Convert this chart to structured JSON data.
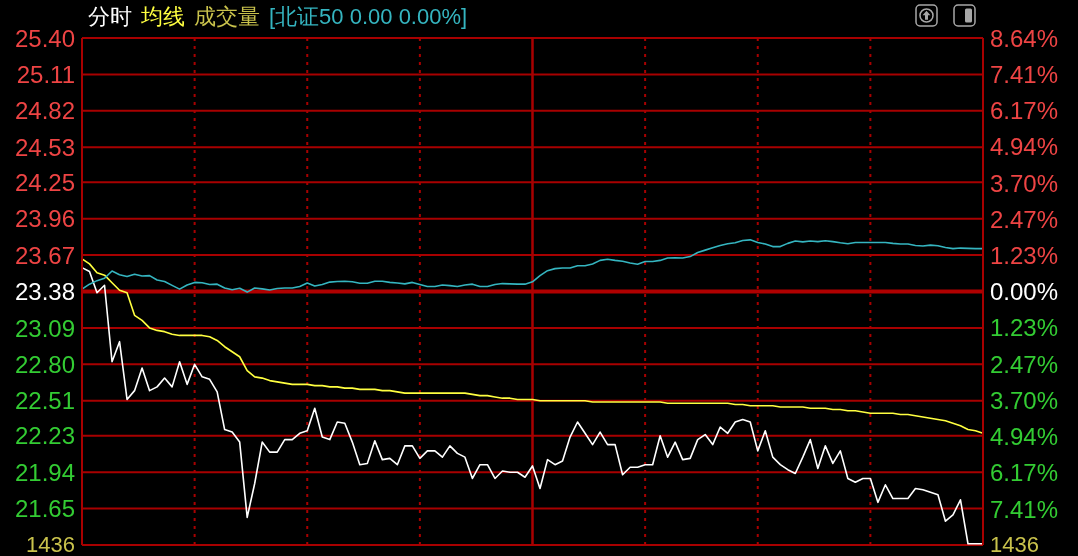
{
  "chart_data": {
    "type": "line",
    "grid": true,
    "tick_labels": "y",
    "annotations": [
      "成交量",
      "1436",
      "1436"
    ],
    "categories": [
      null,
      null,
      null,
      null,
      null,
      null,
      null,
      null,
      null,
      null,
      null,
      null,
      null,
      null,
      null,
      null,
      null,
      null,
      null,
      null,
      null,
      null,
      null,
      null,
      null,
      null,
      null,
      null,
      null,
      null,
      null,
      null,
      null,
      null,
      null,
      null,
      null,
      null,
      null,
      null,
      null,
      null,
      null,
      null,
      null,
      null,
      null,
      null,
      null,
      null,
      null,
      null,
      null,
      null,
      null,
      null,
      null,
      null,
      null,
      null,
      null,
      null,
      null,
      null,
      null,
      null,
      null,
      null,
      null,
      null,
      null,
      null,
      null,
      null,
      null,
      null,
      null,
      null,
      null,
      null,
      null,
      null,
      null,
      null,
      null,
      null,
      null,
      null,
      null,
      null,
      null,
      null,
      null,
      null,
      null,
      null,
      null,
      null,
      null,
      null,
      null,
      null,
      null,
      null,
      null,
      null,
      null,
      null,
      null,
      null,
      null,
      null,
      null,
      null,
      null,
      null,
      null,
      null,
      null,
      null,
      null
    ],
    "ylim": [
      21.36,
      25.4
    ],
    "yticks": [
      {
        "value": 25.4,
        "label": "25.40"
      },
      25.11,
      24.82,
      24.53,
      24.25,
      23.96,
      23.67,
      23.38,
      23.09,
      {
        "value": 22.8,
        "label": "22.80"
      },
      22.51,
      22.23,
      21.94,
      21.65
    ],
    "y2lim": [
      -8.64,
      8.64
    ],
    "y2ticks": [
      {
        "value": 8.64,
        "label": "8.64%"
      },
      {
        "value": 7.41,
        "label": "7.41%"
      },
      {
        "value": 6.17,
        "label": "6.17%"
      },
      {
        "value": 4.94,
        "label": "4.94%"
      },
      {
        "value": 3.7,
        "label": "3.70%"
      },
      {
        "value": 2.47,
        "label": "2.47%"
      },
      {
        "value": 1.23,
        "label": "1.23%"
      },
      {
        "value": 0,
        "label": "0.00%"
      },
      {
        "value": -1.23,
        "label": "1.23%"
      },
      {
        "value": -2.47,
        "label": "2.47%"
      },
      {
        "value": -3.7,
        "label": "3.70%"
      },
      {
        "value": -4.94,
        "label": "4.94%"
      },
      {
        "value": -6.17,
        "label": "6.17%"
      },
      {
        "value": -7.41,
        "label": "7.41%"
      }
    ],
    "ref_lines": [
      {
        "axis": "y",
        "value": 23.38,
        "color": "#b00000"
      }
    ],
    "series": [
      {
        "name": "分时",
        "color": "#ffffff",
        "values": [
          23.57,
          23.54,
          23.37,
          23.43,
          22.82,
          22.98,
          22.52,
          22.59,
          22.77,
          22.59,
          22.62,
          22.69,
          22.62,
          22.82,
          22.64,
          22.8,
          22.7,
          22.68,
          22.58,
          22.28,
          22.26,
          22.18,
          21.58,
          21.85,
          22.18,
          22.1,
          22.1,
          22.2,
          22.2,
          22.25,
          22.27,
          22.45,
          22.22,
          22.2,
          22.34,
          22.33,
          22.18,
          22.0,
          22.01,
          22.19,
          22.04,
          22.05,
          22.0,
          22.15,
          22.15,
          22.05,
          22.11,
          22.11,
          22.06,
          22.15,
          22.09,
          22.06,
          21.89,
          22.0,
          22.0,
          21.89,
          21.95,
          21.94,
          21.94,
          21.9,
          21.99,
          21.81,
          22.04,
          22.0,
          22.03,
          22.22,
          22.34,
          22.25,
          22.16,
          22.26,
          22.16,
          22.16,
          21.92,
          21.98,
          21.98,
          22.0,
          22.0,
          22.23,
          22.06,
          22.18,
          22.04,
          22.05,
          22.2,
          22.24,
          22.16,
          22.3,
          22.25,
          22.34,
          22.36,
          22.34,
          22.11,
          22.27,
          22.06,
          22.0,
          21.96,
          21.93,
          22.06,
          22.2,
          21.97,
          22.15,
          22.01,
          22.11,
          21.89,
          21.86,
          21.89,
          21.89,
          21.7,
          21.84,
          21.73,
          21.73,
          21.73,
          21.81,
          21.8,
          21.78,
          21.76,
          21.55,
          21.6,
          21.72,
          21.37,
          21.37,
          21.37
        ]
      },
      {
        "name": "均线",
        "color": "#ffff40",
        "values": [
          23.64,
          23.6,
          23.53,
          23.51,
          23.45,
          23.39,
          23.37,
          23.19,
          23.15,
          23.09,
          23.07,
          23.06,
          23.04,
          23.03,
          23.03,
          23.03,
          23.03,
          23.02,
          22.99,
          22.94,
          22.9,
          22.86,
          22.75,
          22.7,
          22.69,
          22.67,
          22.66,
          22.65,
          22.64,
          22.64,
          22.64,
          22.63,
          22.63,
          22.62,
          22.62,
          22.61,
          22.61,
          22.6,
          22.6,
          22.6,
          22.59,
          22.59,
          22.58,
          22.57,
          22.57,
          22.57,
          22.57,
          22.57,
          22.57,
          22.57,
          22.57,
          22.57,
          22.56,
          22.55,
          22.55,
          22.54,
          22.53,
          22.53,
          22.52,
          22.52,
          22.52,
          22.51,
          22.51,
          22.51,
          22.51,
          22.51,
          22.51,
          22.51,
          22.5,
          22.5,
          22.5,
          22.5,
          22.5,
          22.5,
          22.5,
          22.5,
          22.5,
          22.5,
          22.49,
          22.49,
          22.49,
          22.49,
          22.49,
          22.49,
          22.49,
          22.49,
          22.49,
          22.48,
          22.48,
          22.47,
          22.47,
          22.47,
          22.47,
          22.46,
          22.46,
          22.46,
          22.46,
          22.45,
          22.45,
          22.45,
          22.44,
          22.44,
          22.43,
          22.43,
          22.42,
          22.41,
          22.41,
          22.41,
          22.41,
          22.4,
          22.4,
          22.39,
          22.38,
          22.37,
          22.36,
          22.35,
          22.33,
          22.31,
          22.28,
          22.27,
          22.25
        ]
      },
      {
        "name": "[北证50 0.00 0.00%]",
        "color": "#35b5c0",
        "axis": "y2",
        "values": [
          0.08,
          0.25,
          0.37,
          0.45,
          0.7,
          0.57,
          0.51,
          0.59,
          0.53,
          0.54,
          0.39,
          0.34,
          0.21,
          0.08,
          0.22,
          0.31,
          0.3,
          0.24,
          0.25,
          0.12,
          0.06,
          0.11,
          -0.02,
          0.12,
          0.09,
          0.05,
          0.1,
          0.12,
          0.12,
          0.17,
          0.29,
          0.19,
          0.24,
          0.32,
          0.34,
          0.35,
          0.33,
          0.28,
          0.28,
          0.35,
          0.35,
          0.31,
          0.29,
          0.26,
          0.31,
          0.24,
          0.17,
          0.17,
          0.22,
          0.2,
          0.17,
          0.22,
          0.25,
          0.17,
          0.17,
          0.24,
          0.27,
          0.26,
          0.25,
          0.25,
          0.33,
          0.54,
          0.71,
          0.78,
          0.8,
          0.8,
          0.88,
          0.88,
          0.94,
          1.06,
          1.1,
          1.06,
          1.03,
          0.97,
          0.93,
          1.02,
          1.02,
          1.06,
          1.14,
          1.15,
          1.14,
          1.19,
          1.33,
          1.41,
          1.49,
          1.57,
          1.63,
          1.66,
          1.74,
          1.76,
          1.67,
          1.62,
          1.53,
          1.53,
          1.64,
          1.72,
          1.69,
          1.72,
          1.7,
          1.73,
          1.7,
          1.66,
          1.63,
          1.67,
          1.67,
          1.67,
          1.67,
          1.67,
          1.64,
          1.62,
          1.62,
          1.57,
          1.55,
          1.58,
          1.56,
          1.5,
          1.46,
          1.48,
          1.47,
          1.46,
          1.46
        ]
      }
    ]
  }
}
